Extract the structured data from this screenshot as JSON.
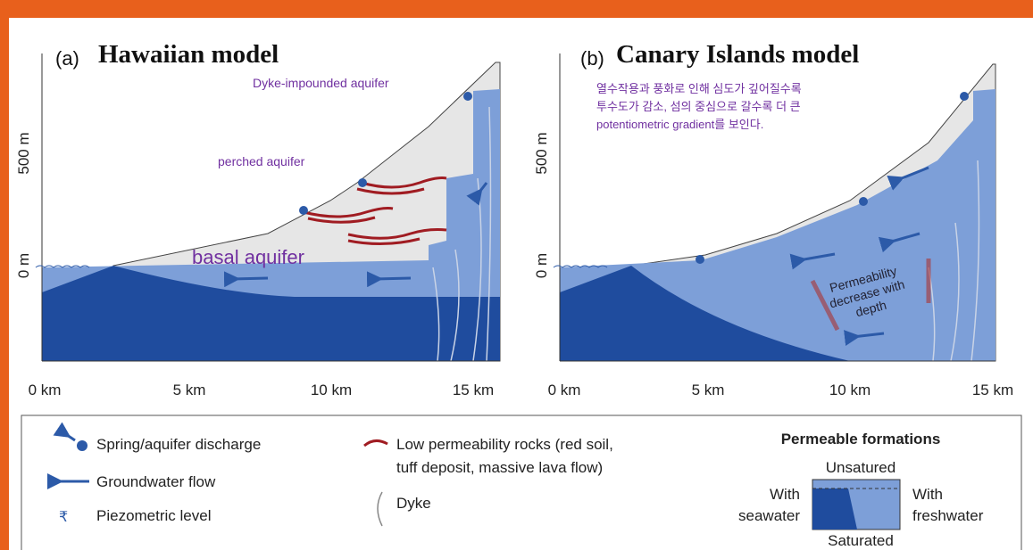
{
  "panels": [
    {
      "tag": "(a)",
      "title": "Hawaiian model",
      "y_labels": [
        "500 m",
        "0 m"
      ],
      "x_labels": [
        "0 km",
        "5 km",
        "10 km",
        "15 km"
      ],
      "annotations": [
        "Dyke-impounded aquifer",
        "perched aquifer",
        "basal aquifer"
      ]
    },
    {
      "tag": "(b)",
      "title": "Canary Islands model",
      "y_labels": [
        "500 m",
        "0 m"
      ],
      "x_labels": [
        "0 km",
        "5 km",
        "10 km",
        "15 km"
      ],
      "annotations": [
        "열수작용과 풍화로 인해 심도가 깊어질수록",
        "투수도가 감소, 섬의 중심으로 갈수록 더 큰",
        "potentiometric gradient를 보인다.",
        "Permeability",
        "decrease with",
        "depth"
      ]
    }
  ],
  "legend": {
    "items": [
      "Spring/aquifer discharge",
      "Groundwater flow",
      "Piezometric level",
      "Low permeability rocks (red soil,",
      "tuff deposit, massive lava flow)",
      "Dyke"
    ],
    "permeable": {
      "title": "Permeable formations",
      "top": "Unsatured",
      "bottom": "Saturated",
      "left": [
        "With",
        "seawater"
      ],
      "right": [
        "With",
        "freshwater"
      ]
    }
  }
}
